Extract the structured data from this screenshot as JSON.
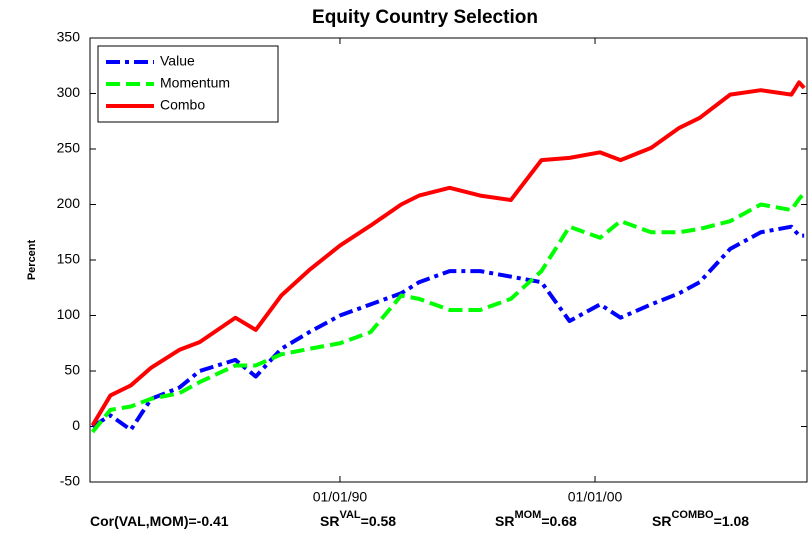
{
  "chart_data": {
    "type": "line",
    "title": "Equity Country Selection",
    "y_label": "Percent",
    "x": [
      1980.3,
      1981,
      1981.8,
      1982.6,
      1983.7,
      1984.5,
      1985.9,
      1986.7,
      1987.7,
      1988.8,
      1990,
      1991.2,
      1992.4,
      1993.1,
      1994.3,
      1995.5,
      1996.7,
      1997.9,
      1999,
      2000.2,
      2001,
      2002.2,
      2003.3,
      2004.1,
      2005.3,
      2006.5,
      2007.7,
      2008,
      2008.2
    ],
    "series": [
      {
        "name": "Value",
        "color": "#0000ff",
        "dash": "dashdot",
        "values": [
          0,
          10,
          -3,
          25,
          35,
          50,
          60,
          45,
          70,
          85,
          100,
          110,
          120,
          130,
          140,
          140,
          135,
          130,
          95,
          110,
          98,
          110,
          120,
          130,
          160,
          175,
          180,
          172,
          172
        ]
      },
      {
        "name": "Momentum",
        "color": "#00ff00",
        "dash": "dashed",
        "values": [
          -5,
          15,
          18,
          25,
          30,
          40,
          55,
          55,
          65,
          70,
          75,
          85,
          118,
          115,
          105,
          105,
          115,
          140,
          180,
          170,
          185,
          175,
          175,
          178,
          185,
          200,
          195,
          205,
          210
        ]
      },
      {
        "name": "Combo",
        "color": "#ff0000",
        "dash": "solid",
        "values": [
          1,
          28,
          37,
          53,
          69,
          76,
          98,
          87,
          118,
          141,
          163,
          181,
          200,
          208,
          215,
          208,
          204,
          240,
          242,
          247,
          240,
          251,
          269,
          278,
          299,
          303,
          299,
          310,
          305
        ]
      }
    ],
    "xlim": [
      1980.2,
      2008.35
    ],
    "xticks": [
      {
        "value": 1990,
        "label": "01/01/90"
      },
      {
        "value": 2000,
        "label": "01/01/00"
      }
    ],
    "ylim": [
      -50,
      350
    ],
    "yticks": [
      -50,
      0,
      50,
      100,
      150,
      200,
      250,
      300,
      350
    ],
    "legend": "upper left",
    "annotations": [
      {
        "base": "Cor(VAL,MOM)=-0.41"
      },
      {
        "base": "SR",
        "sup": "VAL",
        "tail": "=0.58"
      },
      {
        "base": "SR",
        "sup": "MOM",
        "tail": "=0.68"
      },
      {
        "base": "SR",
        "sup": "COMBO",
        "tail": "=1.08"
      }
    ]
  }
}
